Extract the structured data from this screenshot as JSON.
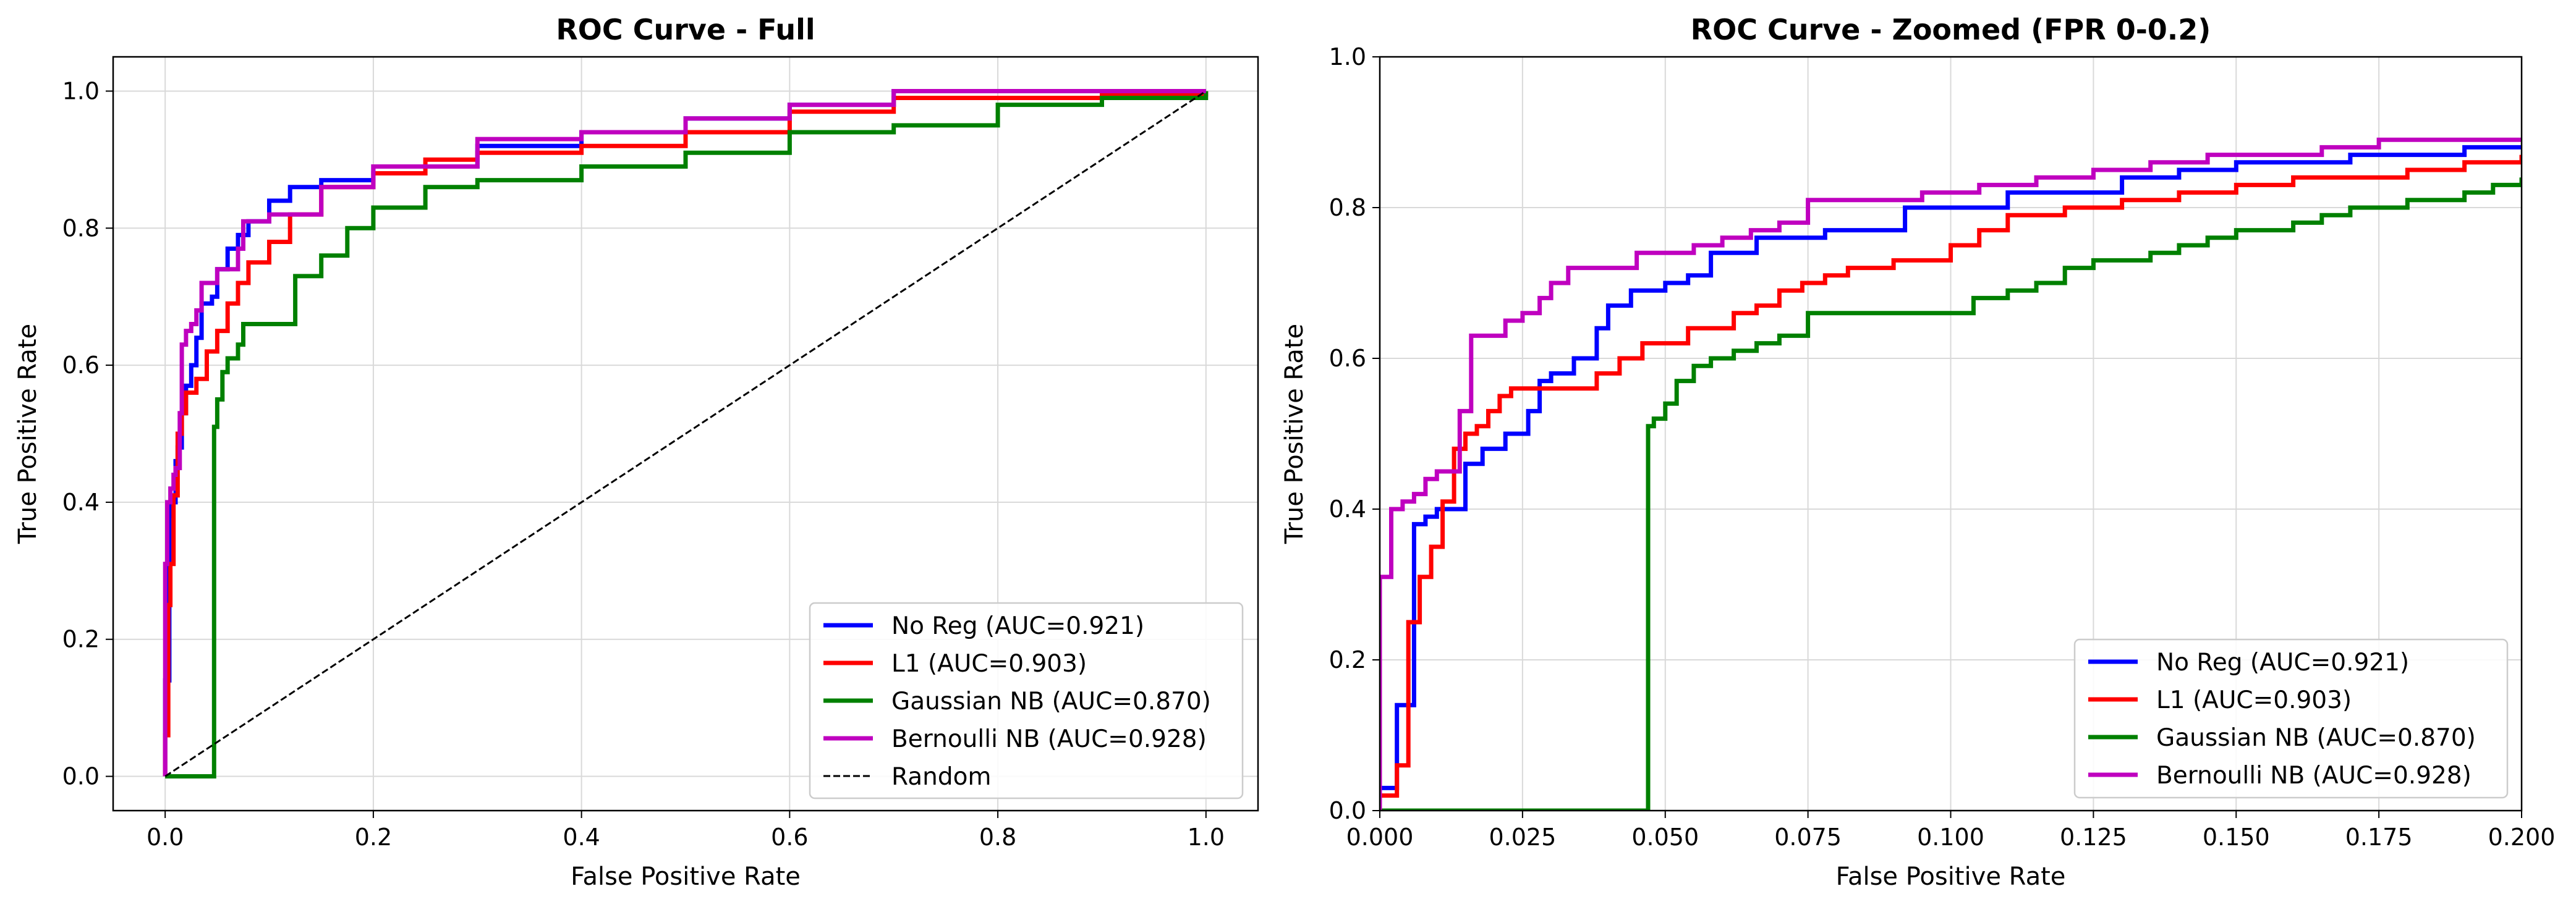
{
  "chart_data": [
    {
      "type": "line",
      "title": "ROC Curve - Full",
      "xlabel": "False Positive Rate",
      "ylabel": "True Positive Rate",
      "xlim": [
        -0.05,
        1.05
      ],
      "ylim": [
        -0.05,
        1.05
      ],
      "xticks": [
        "0.0",
        "0.2",
        "0.4",
        "0.6",
        "0.8",
        "1.0"
      ],
      "yticks": [
        "0.0",
        "0.2",
        "0.4",
        "0.6",
        "0.8",
        "1.0"
      ],
      "grid": true,
      "legend_position": "lower-right",
      "series": [
        {
          "name": "No Reg (AUC=0.921)",
          "color": "#0000ff",
          "step": true,
          "x": [
            0,
            0,
            0.004,
            0.006,
            0.01,
            0.012,
            0.016,
            0.02,
            0.025,
            0.03,
            0.035,
            0.045,
            0.05,
            0.06,
            0.07,
            0.08,
            0.1,
            0.12,
            0.15,
            0.2,
            0.3,
            0.4,
            0.5,
            0.6,
            0.7,
            0.8,
            0.9,
            1.0
          ],
          "y": [
            0,
            0.14,
            0.38,
            0.4,
            0.46,
            0.48,
            0.53,
            0.57,
            0.6,
            0.64,
            0.69,
            0.7,
            0.74,
            0.77,
            0.79,
            0.81,
            0.84,
            0.86,
            0.87,
            0.89,
            0.92,
            0.94,
            0.96,
            0.98,
            1.0,
            1.0,
            1.0,
            1.0
          ]
        },
        {
          "name": "L1 (AUC=0.903)",
          "color": "#ff0000",
          "step": true,
          "x": [
            0,
            0,
            0.003,
            0.005,
            0.008,
            0.012,
            0.016,
            0.02,
            0.025,
            0.03,
            0.04,
            0.05,
            0.06,
            0.07,
            0.08,
            0.1,
            0.12,
            0.15,
            0.2,
            0.25,
            0.3,
            0.4,
            0.5,
            0.6,
            0.7,
            0.8,
            0.9,
            1.0
          ],
          "y": [
            0,
            0.06,
            0.25,
            0.31,
            0.41,
            0.5,
            0.53,
            0.56,
            0.56,
            0.58,
            0.62,
            0.65,
            0.69,
            0.72,
            0.75,
            0.78,
            0.82,
            0.86,
            0.88,
            0.9,
            0.91,
            0.92,
            0.94,
            0.97,
            0.99,
            0.99,
            0.995,
            1.0
          ]
        },
        {
          "name": "Gaussian NB (AUC=0.870)",
          "color": "#008000",
          "step": true,
          "x": [
            0,
            0.047,
            0.05,
            0.055,
            0.06,
            0.07,
            0.075,
            0.1,
            0.125,
            0.15,
            0.175,
            0.2,
            0.25,
            0.3,
            0.4,
            0.5,
            0.6,
            0.7,
            0.8,
            0.9,
            1.0
          ],
          "y": [
            0,
            0.51,
            0.55,
            0.59,
            0.61,
            0.63,
            0.66,
            0.66,
            0.73,
            0.76,
            0.8,
            0.83,
            0.86,
            0.87,
            0.89,
            0.91,
            0.94,
            0.95,
            0.98,
            0.99,
            1.0
          ]
        },
        {
          "name": "Bernoulli NB (AUC=0.928)",
          "color": "#bf00bf",
          "step": true,
          "x": [
            0,
            0,
            0.002,
            0.005,
            0.008,
            0.01,
            0.014,
            0.016,
            0.02,
            0.025,
            0.03,
            0.035,
            0.05,
            0.07,
            0.075,
            0.1,
            0.15,
            0.2,
            0.3,
            0.4,
            0.5,
            0.6,
            0.7,
            0.8,
            0.9,
            1.0
          ],
          "y": [
            0,
            0.31,
            0.4,
            0.42,
            0.44,
            0.45,
            0.53,
            0.63,
            0.65,
            0.66,
            0.68,
            0.72,
            0.74,
            0.77,
            0.81,
            0.82,
            0.86,
            0.89,
            0.93,
            0.94,
            0.96,
            0.98,
            1.0,
            1.0,
            1.0,
            1.0
          ]
        },
        {
          "name": "Random",
          "color": "#000000",
          "dashed": true,
          "step": false,
          "x": [
            0,
            1
          ],
          "y": [
            0,
            1
          ]
        }
      ]
    },
    {
      "type": "line",
      "title": "ROC Curve - Zoomed (FPR 0-0.2)",
      "xlabel": "False Positive Rate",
      "ylabel": "True Positive Rate",
      "xlim": [
        0,
        0.2
      ],
      "ylim": [
        0,
        1.0
      ],
      "xticks": [
        "0.000",
        "0.025",
        "0.050",
        "0.075",
        "0.100",
        "0.125",
        "0.150",
        "0.175",
        "0.200"
      ],
      "yticks": [
        "0.0",
        "0.2",
        "0.4",
        "0.6",
        "0.8",
        "1.0"
      ],
      "grid": true,
      "legend_position": "lower-right",
      "series": [
        {
          "name": "No Reg (AUC=0.921)",
          "color": "#0000ff",
          "step": true,
          "x": [
            0,
            0,
            0.003,
            0.006,
            0.008,
            0.01,
            0.012,
            0.015,
            0.018,
            0.022,
            0.026,
            0.028,
            0.03,
            0.034,
            0.036,
            0.038,
            0.04,
            0.044,
            0.048,
            0.05,
            0.054,
            0.058,
            0.062,
            0.066,
            0.072,
            0.078,
            0.085,
            0.092,
            0.1,
            0.11,
            0.12,
            0.13,
            0.14,
            0.15,
            0.16,
            0.17,
            0.18,
            0.19,
            0.2
          ],
          "y": [
            0,
            0.03,
            0.14,
            0.38,
            0.39,
            0.4,
            0.4,
            0.46,
            0.48,
            0.5,
            0.53,
            0.57,
            0.58,
            0.6,
            0.6,
            0.64,
            0.67,
            0.69,
            0.69,
            0.7,
            0.71,
            0.74,
            0.74,
            0.76,
            0.76,
            0.77,
            0.77,
            0.8,
            0.8,
            0.82,
            0.82,
            0.84,
            0.85,
            0.86,
            0.86,
            0.87,
            0.87,
            0.88,
            0.88
          ]
        },
        {
          "name": "L1 (AUC=0.903)",
          "color": "#ff0000",
          "step": true,
          "x": [
            0,
            0,
            0.003,
            0.005,
            0.007,
            0.009,
            0.011,
            0.013,
            0.015,
            0.017,
            0.019,
            0.021,
            0.023,
            0.026,
            0.028,
            0.03,
            0.032,
            0.034,
            0.036,
            0.038,
            0.042,
            0.046,
            0.05,
            0.054,
            0.058,
            0.062,
            0.066,
            0.07,
            0.074,
            0.078,
            0.082,
            0.09,
            0.1,
            0.105,
            0.11,
            0.12,
            0.13,
            0.14,
            0.15,
            0.16,
            0.17,
            0.18,
            0.19,
            0.2
          ],
          "y": [
            0,
            0.02,
            0.06,
            0.25,
            0.31,
            0.35,
            0.41,
            0.48,
            0.5,
            0.51,
            0.53,
            0.55,
            0.56,
            0.56,
            0.56,
            0.56,
            0.56,
            0.56,
            0.56,
            0.58,
            0.6,
            0.62,
            0.62,
            0.64,
            0.64,
            0.66,
            0.67,
            0.69,
            0.7,
            0.71,
            0.72,
            0.73,
            0.75,
            0.77,
            0.79,
            0.8,
            0.81,
            0.82,
            0.83,
            0.84,
            0.84,
            0.85,
            0.86,
            0.87
          ]
        },
        {
          "name": "Gaussian NB (AUC=0.870)",
          "color": "#008000",
          "step": true,
          "x": [
            0,
            0.047,
            0.048,
            0.05,
            0.052,
            0.055,
            0.058,
            0.062,
            0.066,
            0.07,
            0.075,
            0.1,
            0.104,
            0.11,
            0.115,
            0.12,
            0.125,
            0.13,
            0.135,
            0.14,
            0.145,
            0.15,
            0.155,
            0.16,
            0.165,
            0.17,
            0.175,
            0.18,
            0.185,
            0.19,
            0.195,
            0.2
          ],
          "y": [
            0,
            0.51,
            0.52,
            0.54,
            0.57,
            0.59,
            0.6,
            0.61,
            0.62,
            0.63,
            0.66,
            0.66,
            0.68,
            0.69,
            0.7,
            0.72,
            0.73,
            0.73,
            0.74,
            0.75,
            0.76,
            0.77,
            0.77,
            0.78,
            0.79,
            0.8,
            0.8,
            0.81,
            0.81,
            0.82,
            0.83,
            0.84
          ]
        },
        {
          "name": "Bernoulli NB (AUC=0.928)",
          "color": "#bf00bf",
          "step": true,
          "x": [
            0,
            0,
            0.002,
            0.004,
            0.006,
            0.008,
            0.01,
            0.012,
            0.014,
            0.016,
            0.02,
            0.022,
            0.025,
            0.028,
            0.03,
            0.033,
            0.036,
            0.045,
            0.05,
            0.055,
            0.06,
            0.065,
            0.07,
            0.075,
            0.085,
            0.095,
            0.105,
            0.115,
            0.125,
            0.135,
            0.145,
            0.155,
            0.165,
            0.175,
            0.19,
            0.2
          ],
          "y": [
            0,
            0.31,
            0.4,
            0.41,
            0.42,
            0.44,
            0.45,
            0.45,
            0.53,
            0.63,
            0.63,
            0.65,
            0.66,
            0.68,
            0.7,
            0.72,
            0.72,
            0.74,
            0.74,
            0.75,
            0.76,
            0.77,
            0.78,
            0.81,
            0.81,
            0.82,
            0.83,
            0.84,
            0.85,
            0.86,
            0.87,
            0.87,
            0.88,
            0.89,
            0.89,
            0.89
          ]
        }
      ]
    }
  ]
}
